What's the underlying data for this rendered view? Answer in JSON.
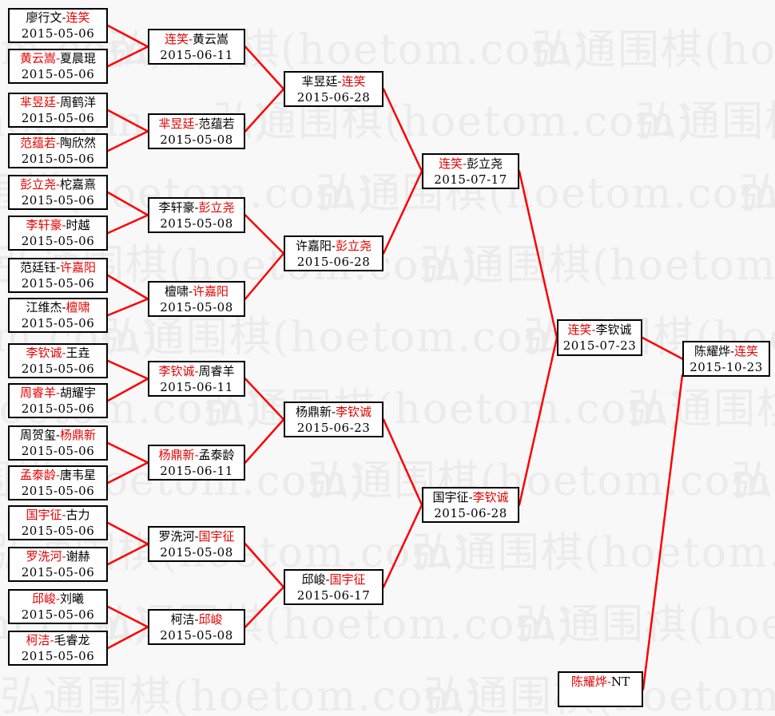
{
  "watermark": {
    "text": "弘通围棋(hoetom.com)",
    "color": "#ebebeb"
  },
  "colors": {
    "page_bg": "#f8f8f8",
    "box_bg": "#ffffff",
    "box_border": "#000000",
    "text": "#000000",
    "winner_red": "#e60000",
    "line_red": "#ff0000"
  },
  "bracket": {
    "separator": "-",
    "rounds": [
      [
        {
          "p1": "廖行文",
          "p2": "连笑",
          "w": 2,
          "date": "2015-05-06"
        },
        {
          "p1": "黄云嵩",
          "p2": "夏晨琨",
          "w": 1,
          "date": "2015-05-06"
        },
        {
          "p1": "芈昱廷",
          "p2": "周鹤洋",
          "w": 1,
          "date": "2015-05-06"
        },
        {
          "p1": "范蕴若",
          "p2": "陶欣然",
          "w": 1,
          "date": "2015-05-06"
        },
        {
          "p1": "彭立尧",
          "p2": "柁嘉熹",
          "w": 1,
          "date": "2015-05-06"
        },
        {
          "p1": "李轩豪",
          "p2": "时越",
          "w": 1,
          "date": "2015-05-06"
        },
        {
          "p1": "范廷钰",
          "p2": "许嘉阳",
          "w": 2,
          "date": "2015-05-06"
        },
        {
          "p1": "江维杰",
          "p2": "檀啸",
          "w": 2,
          "date": "2015-05-06"
        },
        {
          "p1": "李钦诚",
          "p2": "王垚",
          "w": 1,
          "date": "2015-05-06"
        },
        {
          "p1": "周睿羊",
          "p2": "胡耀宇",
          "w": 1,
          "date": "2015-05-06"
        },
        {
          "p1": "周贺玺",
          "p2": "杨鼎新",
          "w": 2,
          "date": "2015-05-06"
        },
        {
          "p1": "孟泰龄",
          "p2": "唐韦星",
          "w": 1,
          "date": "2015-05-06"
        },
        {
          "p1": "国宇征",
          "p2": "古力",
          "w": 1,
          "date": "2015-05-06"
        },
        {
          "p1": "罗洗河",
          "p2": "谢赫",
          "w": 1,
          "date": "2015-05-06"
        },
        {
          "p1": "邱峻",
          "p2": "刘曦",
          "w": 1,
          "date": "2015-05-06"
        },
        {
          "p1": "柯洁",
          "p2": "毛睿龙",
          "w": 1,
          "date": "2015-05-06"
        }
      ],
      [
        {
          "p1": "连笑",
          "p2": "黄云嵩",
          "w": 1,
          "date": "2015-06-11"
        },
        {
          "p1": "芈昱廷",
          "p2": "范蕴若",
          "w": 1,
          "date": "2015-05-08"
        },
        {
          "p1": "李轩豪",
          "p2": "彭立尧",
          "w": 2,
          "date": "2015-05-08"
        },
        {
          "p1": "檀啸",
          "p2": "许嘉阳",
          "w": 2,
          "date": "2015-05-08"
        },
        {
          "p1": "李钦诚",
          "p2": "周睿羊",
          "w": 1,
          "date": "2015-06-11"
        },
        {
          "p1": "杨鼎新",
          "p2": "孟泰龄",
          "w": 1,
          "date": "2015-06-11"
        },
        {
          "p1": "罗洗河",
          "p2": "国宇征",
          "w": 2,
          "date": "2015-05-08"
        },
        {
          "p1": "柯洁",
          "p2": "邱峻",
          "w": 2,
          "date": "2015-05-08"
        }
      ],
      [
        {
          "p1": "芈昱廷",
          "p2": "连笑",
          "w": 2,
          "date": "2015-06-28"
        },
        {
          "p1": "许嘉阳",
          "p2": "彭立尧",
          "w": 2,
          "date": "2015-06-28"
        },
        {
          "p1": "杨鼎新",
          "p2": "李钦诚",
          "w": 2,
          "date": "2015-06-23"
        },
        {
          "p1": "邱峻",
          "p2": "国宇征",
          "w": 2,
          "date": "2015-06-17"
        }
      ],
      [
        {
          "p1": "连笑",
          "p2": "彭立尧",
          "w": 1,
          "date": "2015-07-17"
        },
        {
          "p1": "国宇征",
          "p2": "李钦诚",
          "w": 2,
          "date": "2015-06-28"
        }
      ],
      [
        {
          "p1": "连笑",
          "p2": "李钦诚",
          "w": 1,
          "date": "2015-07-23"
        }
      ],
      [
        {
          "p1": "陈耀烨",
          "p2": "连笑",
          "w": 2,
          "date": "2015-10-23"
        }
      ]
    ],
    "champion_seed": {
      "p1": "陈耀烨",
      "p2": "NT",
      "w": 1,
      "date": ""
    }
  }
}
